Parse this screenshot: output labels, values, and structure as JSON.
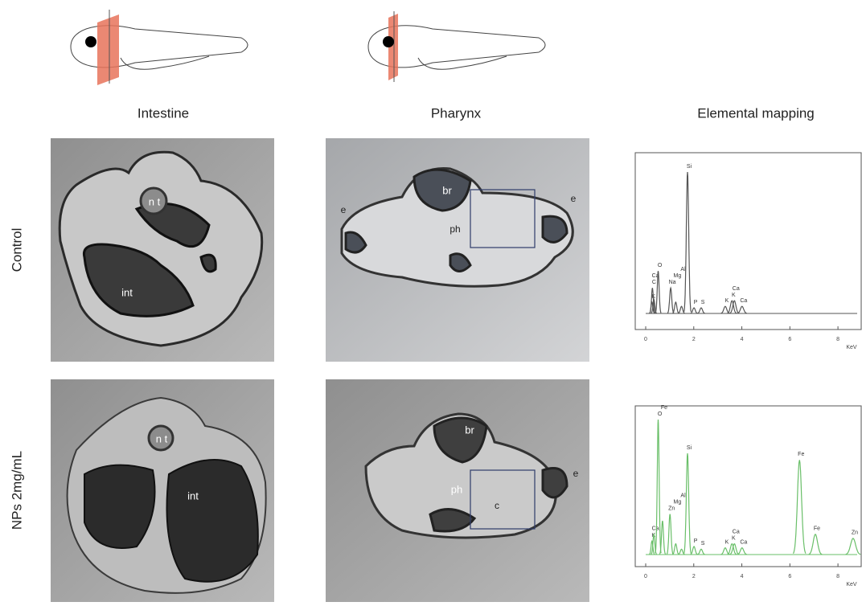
{
  "columns": [
    "Intestine",
    "Pharynx",
    "Elemental mapping"
  ],
  "rows": [
    "Control",
    "NPs 2mg/mL"
  ],
  "micrographs": [
    {
      "intestine": [
        "n t",
        "int"
      ],
      "pharynx": [
        "br",
        "ph",
        "e",
        "e"
      ]
    },
    {
      "intestine": [
        "n t",
        "int"
      ],
      "pharynx": [
        "br",
        "ph",
        "c",
        "e"
      ]
    }
  ],
  "spectra": [
    {
      "type": "spectrum",
      "color": "#555555",
      "x_label": "KeV",
      "xlim": [
        0,
        8.8
      ],
      "xticks": [
        0,
        2,
        4,
        6,
        8
      ],
      "ylim": [
        0,
        100
      ],
      "elements": [
        "K",
        "C",
        "Ca",
        "O",
        "Na",
        "Mg",
        "Al",
        "Si",
        "P",
        "S",
        "K",
        "K",
        "Ca",
        "Ca"
      ],
      "energies": [
        0.26,
        0.28,
        0.34,
        0.52,
        1.04,
        1.25,
        1.49,
        1.74,
        2.01,
        2.31,
        3.31,
        3.59,
        3.69,
        4.01
      ],
      "heights": [
        8,
        18,
        10,
        30,
        18,
        8,
        5,
        100,
        4,
        4,
        5,
        9,
        9,
        5
      ]
    },
    {
      "type": "spectrum",
      "color": "#6abf69",
      "x_label": "KeV",
      "xlim": [
        0,
        8.8
      ],
      "xticks": [
        0,
        2,
        4,
        6,
        8
      ],
      "ylim": [
        0,
        100
      ],
      "elements": [
        "K",
        "Ca",
        "O",
        "Fe",
        "Zn",
        "Mg",
        "Al",
        "Si",
        "P",
        "S",
        "K",
        "K",
        "Ca",
        "Ca",
        "Fe",
        "Fe",
        "Zn"
      ],
      "energies": [
        0.26,
        0.34,
        0.52,
        0.7,
        1.01,
        1.25,
        1.49,
        1.74,
        2.01,
        2.31,
        3.31,
        3.59,
        3.69,
        4.01,
        6.4,
        7.06,
        8.63
      ],
      "heights": [
        10,
        15,
        100,
        25,
        30,
        8,
        4,
        75,
        6,
        4,
        5,
        8,
        8,
        5,
        70,
        15,
        12
      ]
    }
  ]
}
